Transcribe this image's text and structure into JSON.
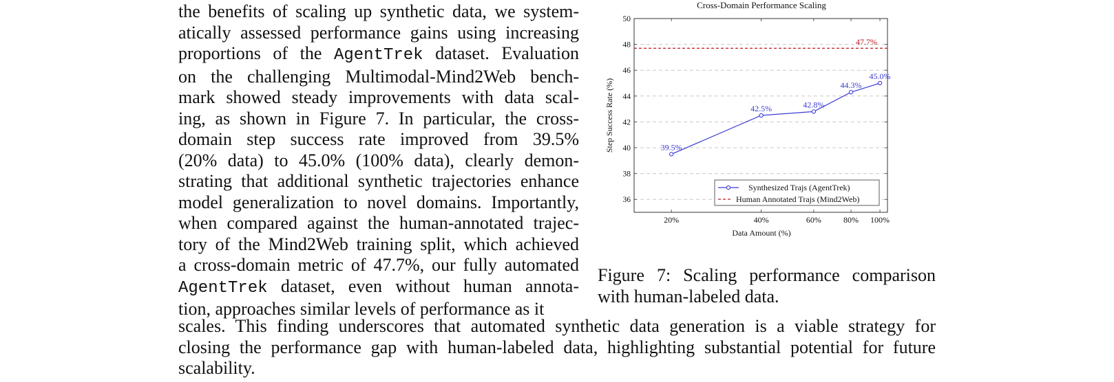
{
  "body_text": {
    "left_lines": [
      "the benefits of scaling up synthetic data, we system-",
      "atically assessed performance gains using increasing",
      [
        "proportions of the ",
        "AgentTrek",
        " dataset. Evaluation"
      ],
      "on the challenging Multimodal-Mind2Web bench-",
      "mark showed steady improvements with data scal-",
      "ing, as shown in Figure 7. In particular, the cross-",
      "domain step success rate improved from 39.5%",
      "(20% data) to 45.0% (100% data), clearly demon-",
      "strating that additional synthetic trajectories enhance",
      "model generalization to novel domains. Importantly,",
      "when compared against the human-annotated trajec-",
      "tory of the Mind2Web training split, which achieved",
      "a cross-domain metric of 47.7%, our fully automated",
      [
        "",
        "AgentTrek",
        " dataset, even without human annota-"
      ],
      "tion, approaches similar levels of performance as it"
    ],
    "bottom_lines": [
      "scales. This finding underscores that automated synthetic data generation is a viable strategy for",
      "closing the performance gap with human-labeled data, highlighting substantial potential for future",
      "scalability."
    ]
  },
  "figure": {
    "caption_lines": [
      "Figure 7: Scaling performance comparison",
      "with human-labeled data."
    ]
  },
  "chart_data": {
    "type": "line",
    "title": "Cross-Domain Performance Scaling",
    "xlabel": "Data Amount (%)",
    "ylabel": "Step Success Rate (%)",
    "x": [
      20,
      40,
      60,
      80,
      100
    ],
    "x_tick_labels": [
      "20%",
      "40%",
      "60%",
      "80%",
      "100%"
    ],
    "x_scale": "log",
    "ylim": [
      35,
      50
    ],
    "y_ticks": [
      36,
      38,
      40,
      42,
      44,
      46,
      48,
      50
    ],
    "grid": "horizontal dashed",
    "legend_position": "bottom-right",
    "series": [
      {
        "name": "Synthesized Trajs (AgentTrek)",
        "values": [
          39.5,
          42.5,
          42.8,
          44.3,
          45.0
        ],
        "data_labels": [
          "39.5%",
          "42.5%",
          "42.8%",
          "44.3%",
          "45.0%"
        ],
        "color": "#3b3bd6",
        "marker": "circle"
      }
    ],
    "reference_lines": [
      {
        "name": "Human Annotated Trajs (Mind2Web)",
        "value": 47.7,
        "label": "47.7%",
        "color": "#c0161c",
        "style": "dashed"
      }
    ]
  }
}
